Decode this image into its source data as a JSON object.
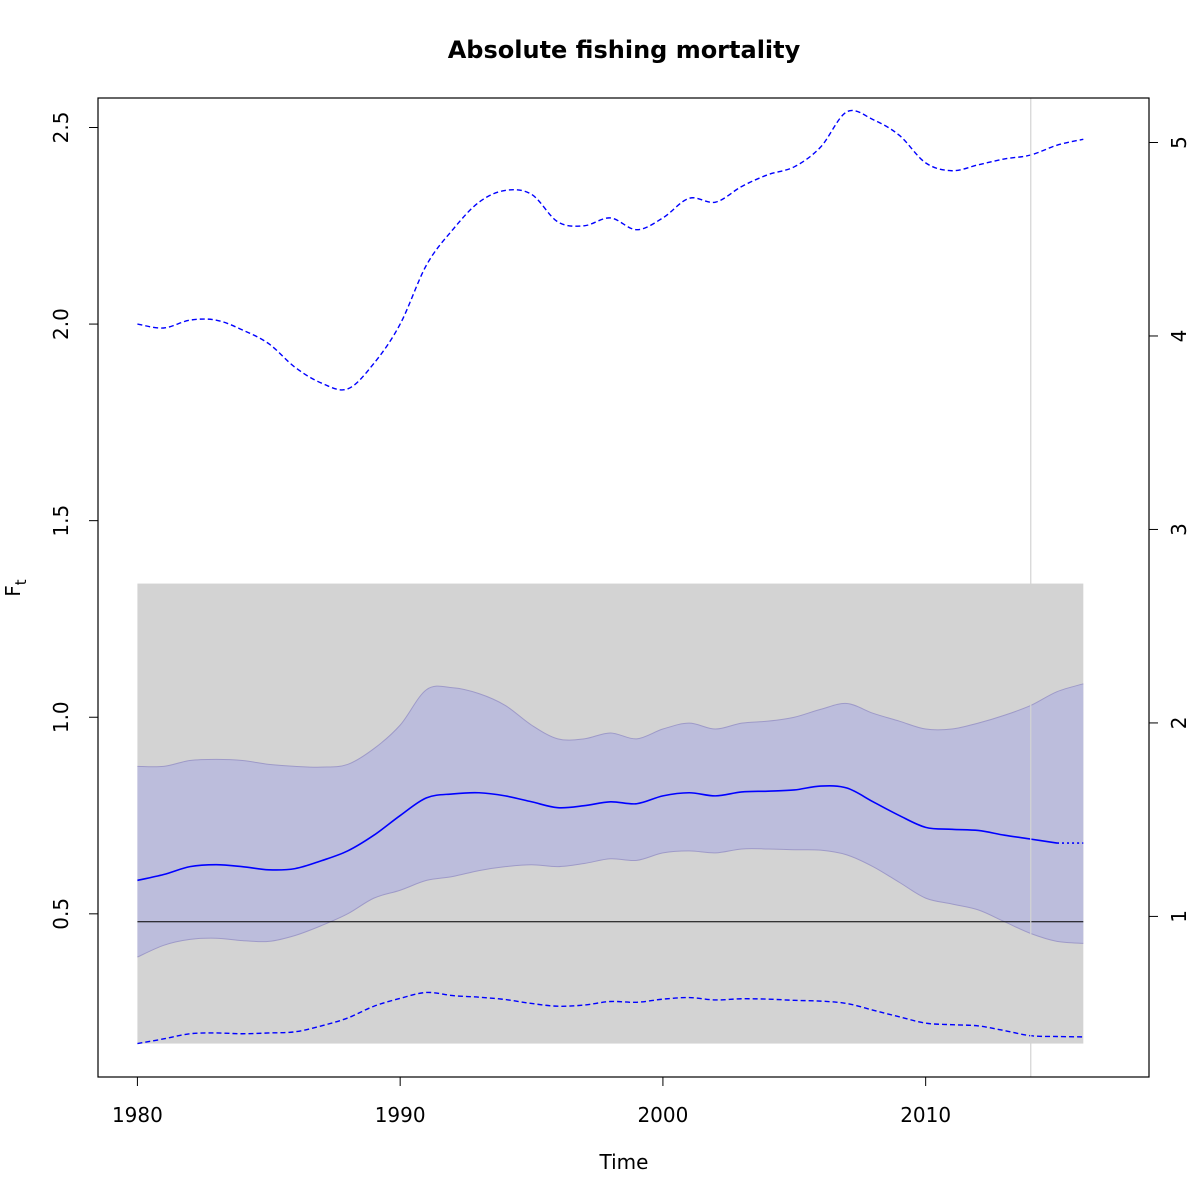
{
  "chart_data": {
    "type": "line",
    "title": "Absolute fishing mortality",
    "xlabel": "Time",
    "ylabel": "F",
    "ylabel_subscript": "t",
    "xlim": [
      1978.5,
      2018.5
    ],
    "ylim": [
      0.085,
      2.575
    ],
    "right_ylim": [
      0.17,
      5.23
    ],
    "x_ticks": [
      1980,
      1990,
      2000,
      2010
    ],
    "y_ticks": [
      0.5,
      1.0,
      1.5,
      2.0,
      2.5
    ],
    "y_tick_labels": [
      "0.5",
      "1.0",
      "1.5",
      "2.0",
      "2.5"
    ],
    "right_y_ticks": [
      1,
      2,
      3,
      4,
      5
    ],
    "right_y_tick_labels": [
      "1",
      "2",
      "3",
      "4",
      "5"
    ],
    "grey_band": {
      "x": [
        1980,
        2016
      ],
      "y": [
        0.17,
        1.34
      ]
    },
    "reference_line_y": 0.48,
    "last_data_year": 2014,
    "colors": {
      "estimate": "#0000ff",
      "ci_fill": "#bcbddc",
      "ci_edge": "#9e9ac8",
      "grey_band": "#d3d3d3",
      "reference_line": "#000000",
      "vline": "#d3d3d3"
    },
    "x": [
      1980,
      1981,
      1982,
      1983,
      1984,
      1985,
      1986,
      1987,
      1988,
      1989,
      1990,
      1991,
      1992,
      1993,
      1994,
      1995,
      1996,
      1997,
      1998,
      1999,
      2000,
      2001,
      2002,
      2003,
      2004,
      2005,
      2006,
      2007,
      2008,
      2009,
      2010,
      2011,
      2012,
      2013,
      2014,
      2015,
      2016
    ],
    "series": [
      {
        "role": "estimate",
        "values": [
          0.585,
          0.6,
          0.62,
          0.625,
          0.62,
          0.612,
          0.615,
          0.635,
          0.66,
          0.7,
          0.75,
          0.795,
          0.805,
          0.808,
          0.8,
          0.785,
          0.77,
          0.775,
          0.785,
          0.78,
          0.8,
          0.808,
          0.8,
          0.81,
          0.812,
          0.815,
          0.825,
          0.82,
          0.785,
          0.75,
          0.72,
          0.715,
          0.712,
          0.7,
          0.69,
          0.68,
          0.68
        ]
      },
      {
        "role": "ci_upper",
        "values": [
          0.875,
          0.875,
          0.89,
          0.893,
          0.89,
          0.88,
          0.875,
          0.873,
          0.88,
          0.92,
          0.98,
          1.07,
          1.075,
          1.06,
          1.03,
          0.98,
          0.945,
          0.945,
          0.96,
          0.945,
          0.97,
          0.985,
          0.97,
          0.985,
          0.99,
          1.0,
          1.02,
          1.035,
          1.01,
          0.99,
          0.97,
          0.97,
          0.985,
          1.005,
          1.03,
          1.065,
          1.085
        ]
      },
      {
        "role": "ci_lower",
        "values": [
          0.39,
          0.42,
          0.435,
          0.438,
          0.432,
          0.43,
          0.445,
          0.47,
          0.5,
          0.54,
          0.56,
          0.585,
          0.595,
          0.61,
          0.62,
          0.625,
          0.62,
          0.628,
          0.64,
          0.636,
          0.655,
          0.66,
          0.655,
          0.665,
          0.665,
          0.663,
          0.662,
          0.65,
          0.62,
          0.58,
          0.54,
          0.525,
          0.51,
          0.48,
          0.45,
          0.43,
          0.425
        ]
      },
      {
        "role": "upper_dashed",
        "values": [
          2.0,
          1.99,
          2.01,
          2.01,
          1.985,
          1.95,
          1.89,
          1.85,
          1.835,
          1.9,
          2.0,
          2.15,
          2.24,
          2.31,
          2.34,
          2.33,
          2.26,
          2.25,
          2.27,
          2.24,
          2.27,
          2.32,
          2.31,
          2.35,
          2.38,
          2.4,
          2.45,
          2.54,
          2.52,
          2.48,
          2.41,
          2.39,
          2.405,
          2.42,
          2.43,
          2.455,
          2.47
        ]
      },
      {
        "role": "lower_dashed",
        "values": [
          0.17,
          0.182,
          0.195,
          0.197,
          0.195,
          0.197,
          0.2,
          0.215,
          0.235,
          0.265,
          0.285,
          0.3,
          0.292,
          0.288,
          0.282,
          0.272,
          0.265,
          0.268,
          0.277,
          0.275,
          0.283,
          0.287,
          0.281,
          0.284,
          0.283,
          0.28,
          0.278,
          0.272,
          0.255,
          0.238,
          0.222,
          0.218,
          0.215,
          0.203,
          0.19,
          0.188,
          0.187
        ]
      }
    ]
  }
}
